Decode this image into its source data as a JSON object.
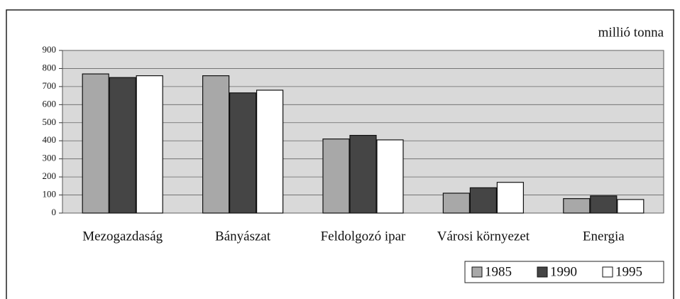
{
  "chart_data": {
    "type": "bar",
    "ylabel": "millió tonna",
    "categories": [
      "Mezogazdaság",
      "Bányászat",
      "Feldolgozó ipar",
      "Városi környezet",
      "Energia"
    ],
    "series": [
      {
        "name": "1985",
        "color": "#a8a8a8",
        "values": [
          770,
          760,
          410,
          110,
          80
        ]
      },
      {
        "name": "1990",
        "color": "#454545",
        "values": [
          750,
          665,
          430,
          140,
          95
        ]
      },
      {
        "name": "1995",
        "color": "#ffffff",
        "values": [
          760,
          680,
          405,
          170,
          75
        ]
      }
    ],
    "ylim": [
      0,
      900
    ],
    "yticks": [
      0,
      100,
      200,
      300,
      400,
      500,
      600,
      700,
      800,
      900
    ],
    "grid": true,
    "legend": "lower right"
  }
}
